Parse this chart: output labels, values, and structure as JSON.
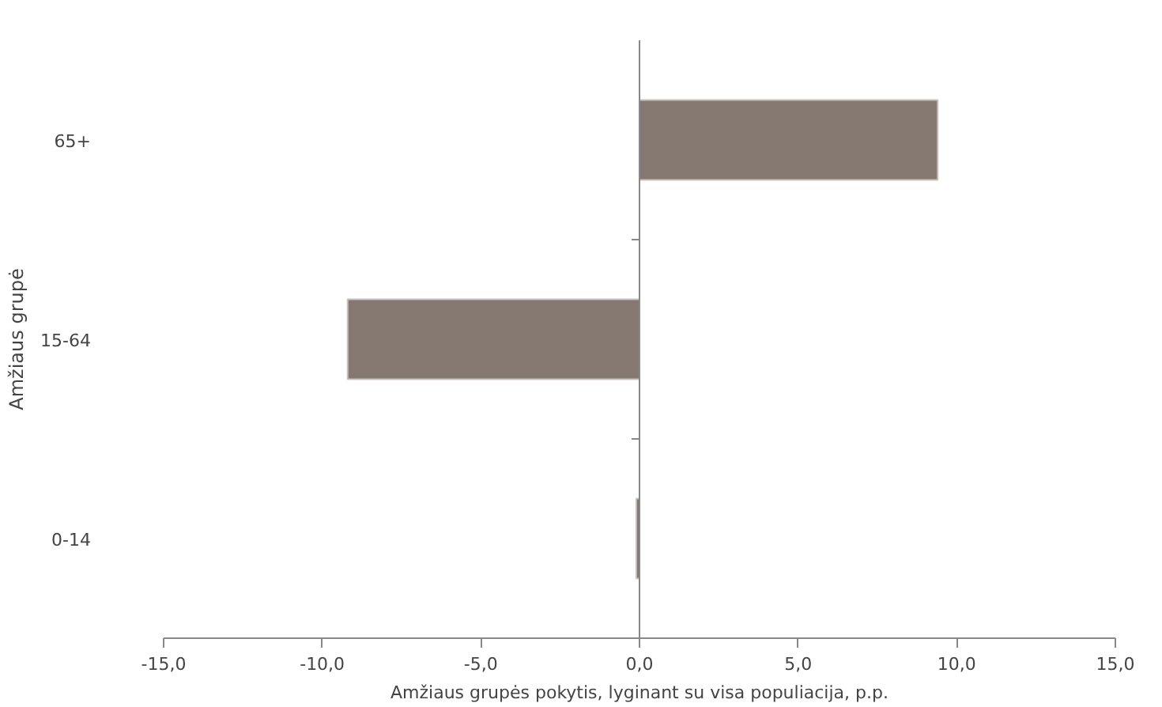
{
  "chart_data": {
    "type": "bar",
    "orientation": "horizontal",
    "categories": [
      "65+",
      "15-64",
      "0-14"
    ],
    "values": [
      9.4,
      -9.2,
      -0.1
    ],
    "color": "#857870",
    "xlim": [
      -15,
      15
    ],
    "xticks": [
      {
        "value": -15,
        "label": "-15,0"
      },
      {
        "value": -10,
        "label": "-10,0"
      },
      {
        "value": -5,
        "label": "-5,0"
      },
      {
        "value": 0,
        "label": "0,0"
      },
      {
        "value": 5,
        "label": "5,0"
      },
      {
        "value": 10,
        "label": "10,0"
      },
      {
        "value": 15,
        "label": "15,0"
      }
    ],
    "xlabel": "Amžiaus grupės pokytis, lyginant su visa populiacija, p.p.",
    "ylabel": "Amžiaus grupė"
  }
}
